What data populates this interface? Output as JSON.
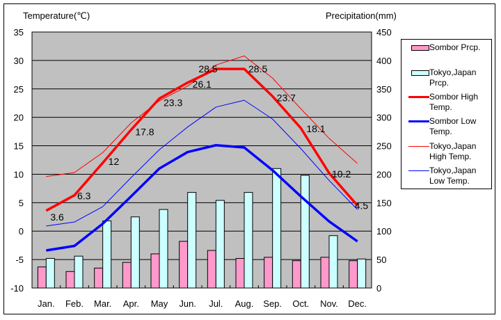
{
  "chart_data": {
    "type": "bar+line",
    "left_axis_title": "Temperature(℃)",
    "right_axis_title": "Precipitation(mm)",
    "categories": [
      "Jan.",
      "Feb.",
      "Mar.",
      "Apr.",
      "May",
      "Jun.",
      "Jul.",
      "Aug.",
      "Sep.",
      "Oct.",
      "Nov.",
      "Dec."
    ],
    "left_axis": {
      "min": -10,
      "max": 35,
      "step": 5,
      "ticks": [
        "35",
        "30",
        "25",
        "20",
        "15",
        "10",
        "5",
        "0",
        "-5",
        "-10"
      ]
    },
    "right_axis": {
      "min": 0,
      "max": 450,
      "step": 50,
      "ticks": [
        "450",
        "400",
        "350",
        "300",
        "250",
        "200",
        "150",
        "100",
        "50",
        "0"
      ]
    },
    "grid": true,
    "plot_background": "#c0c0c0",
    "legend_position": "right",
    "bar_series": [
      {
        "name": "Sombor Prcp.",
        "color": "#ff99cc",
        "axis": "right",
        "values": [
          37,
          29,
          35,
          45,
          60,
          82,
          66,
          52,
          54,
          48,
          54,
          48
        ]
      },
      {
        "name": "Tokyo,Japan Prcp.",
        "color": "#ccffff",
        "axis": "right",
        "values": [
          52,
          56,
          118,
          125,
          138,
          168,
          154,
          168,
          210,
          198,
          92,
          51
        ]
      }
    ],
    "line_series": [
      {
        "name": "Sombor High Temp.",
        "color": "#ff0000",
        "weight": "thick",
        "axis": "left",
        "labeled": true,
        "values": [
          3.6,
          6.3,
          12,
          17.8,
          23.3,
          26.1,
          28.5,
          28.5,
          23.7,
          18.1,
          10.2,
          4.5
        ]
      },
      {
        "name": "Sombor Low Temp.",
        "color": "#0000ff",
        "weight": "thick",
        "axis": "left",
        "labeled": false,
        "values": [
          -3.4,
          -2.6,
          1.3,
          6.1,
          11.0,
          13.9,
          15.1,
          14.7,
          10.7,
          6.1,
          1.7,
          -1.8
        ]
      },
      {
        "name": "Tokyo,Japan High Temp.",
        "color": "#ff0000",
        "weight": "thin",
        "axis": "left",
        "labeled": false,
        "values": [
          9.6,
          10.3,
          13.8,
          19.0,
          22.9,
          25.5,
          29.2,
          30.8,
          26.9,
          21.5,
          16.3,
          11.9
        ]
      },
      {
        "name": "Tokyo,Japan Low Temp.",
        "color": "#0000ff",
        "weight": "thin",
        "axis": "left",
        "labeled": false,
        "values": [
          0.9,
          1.6,
          4.3,
          9.4,
          14.3,
          18.3,
          21.8,
          23.0,
          19.7,
          14.5,
          8.9,
          3.8
        ]
      }
    ],
    "data_labels": [
      "3.6",
      "6.3",
      "12",
      "17.8",
      "23.3",
      "26.1",
      "28.5",
      "28.5",
      "23.7",
      "18.1",
      "10.2",
      "4.5"
    ]
  },
  "legend": {
    "items": [
      {
        "label": "Sombor Prcp.",
        "kind": "box",
        "color": "#ff99cc"
      },
      {
        "label": "Tokyo,Japan Prcp.",
        "kind": "box",
        "color": "#ccffff"
      },
      {
        "label": "Sombor High Temp.",
        "kind": "thick-line",
        "color": "#ff0000"
      },
      {
        "label": "Sombor Low Temp.",
        "kind": "thick-line",
        "color": "#0000ff"
      },
      {
        "label": "Tokyo,Japan High Temp.",
        "kind": "thin-line",
        "color": "#ff0000"
      },
      {
        "label": "Tokyo,Japan Low Temp.",
        "kind": "thin-line",
        "color": "#0000ff"
      }
    ]
  }
}
